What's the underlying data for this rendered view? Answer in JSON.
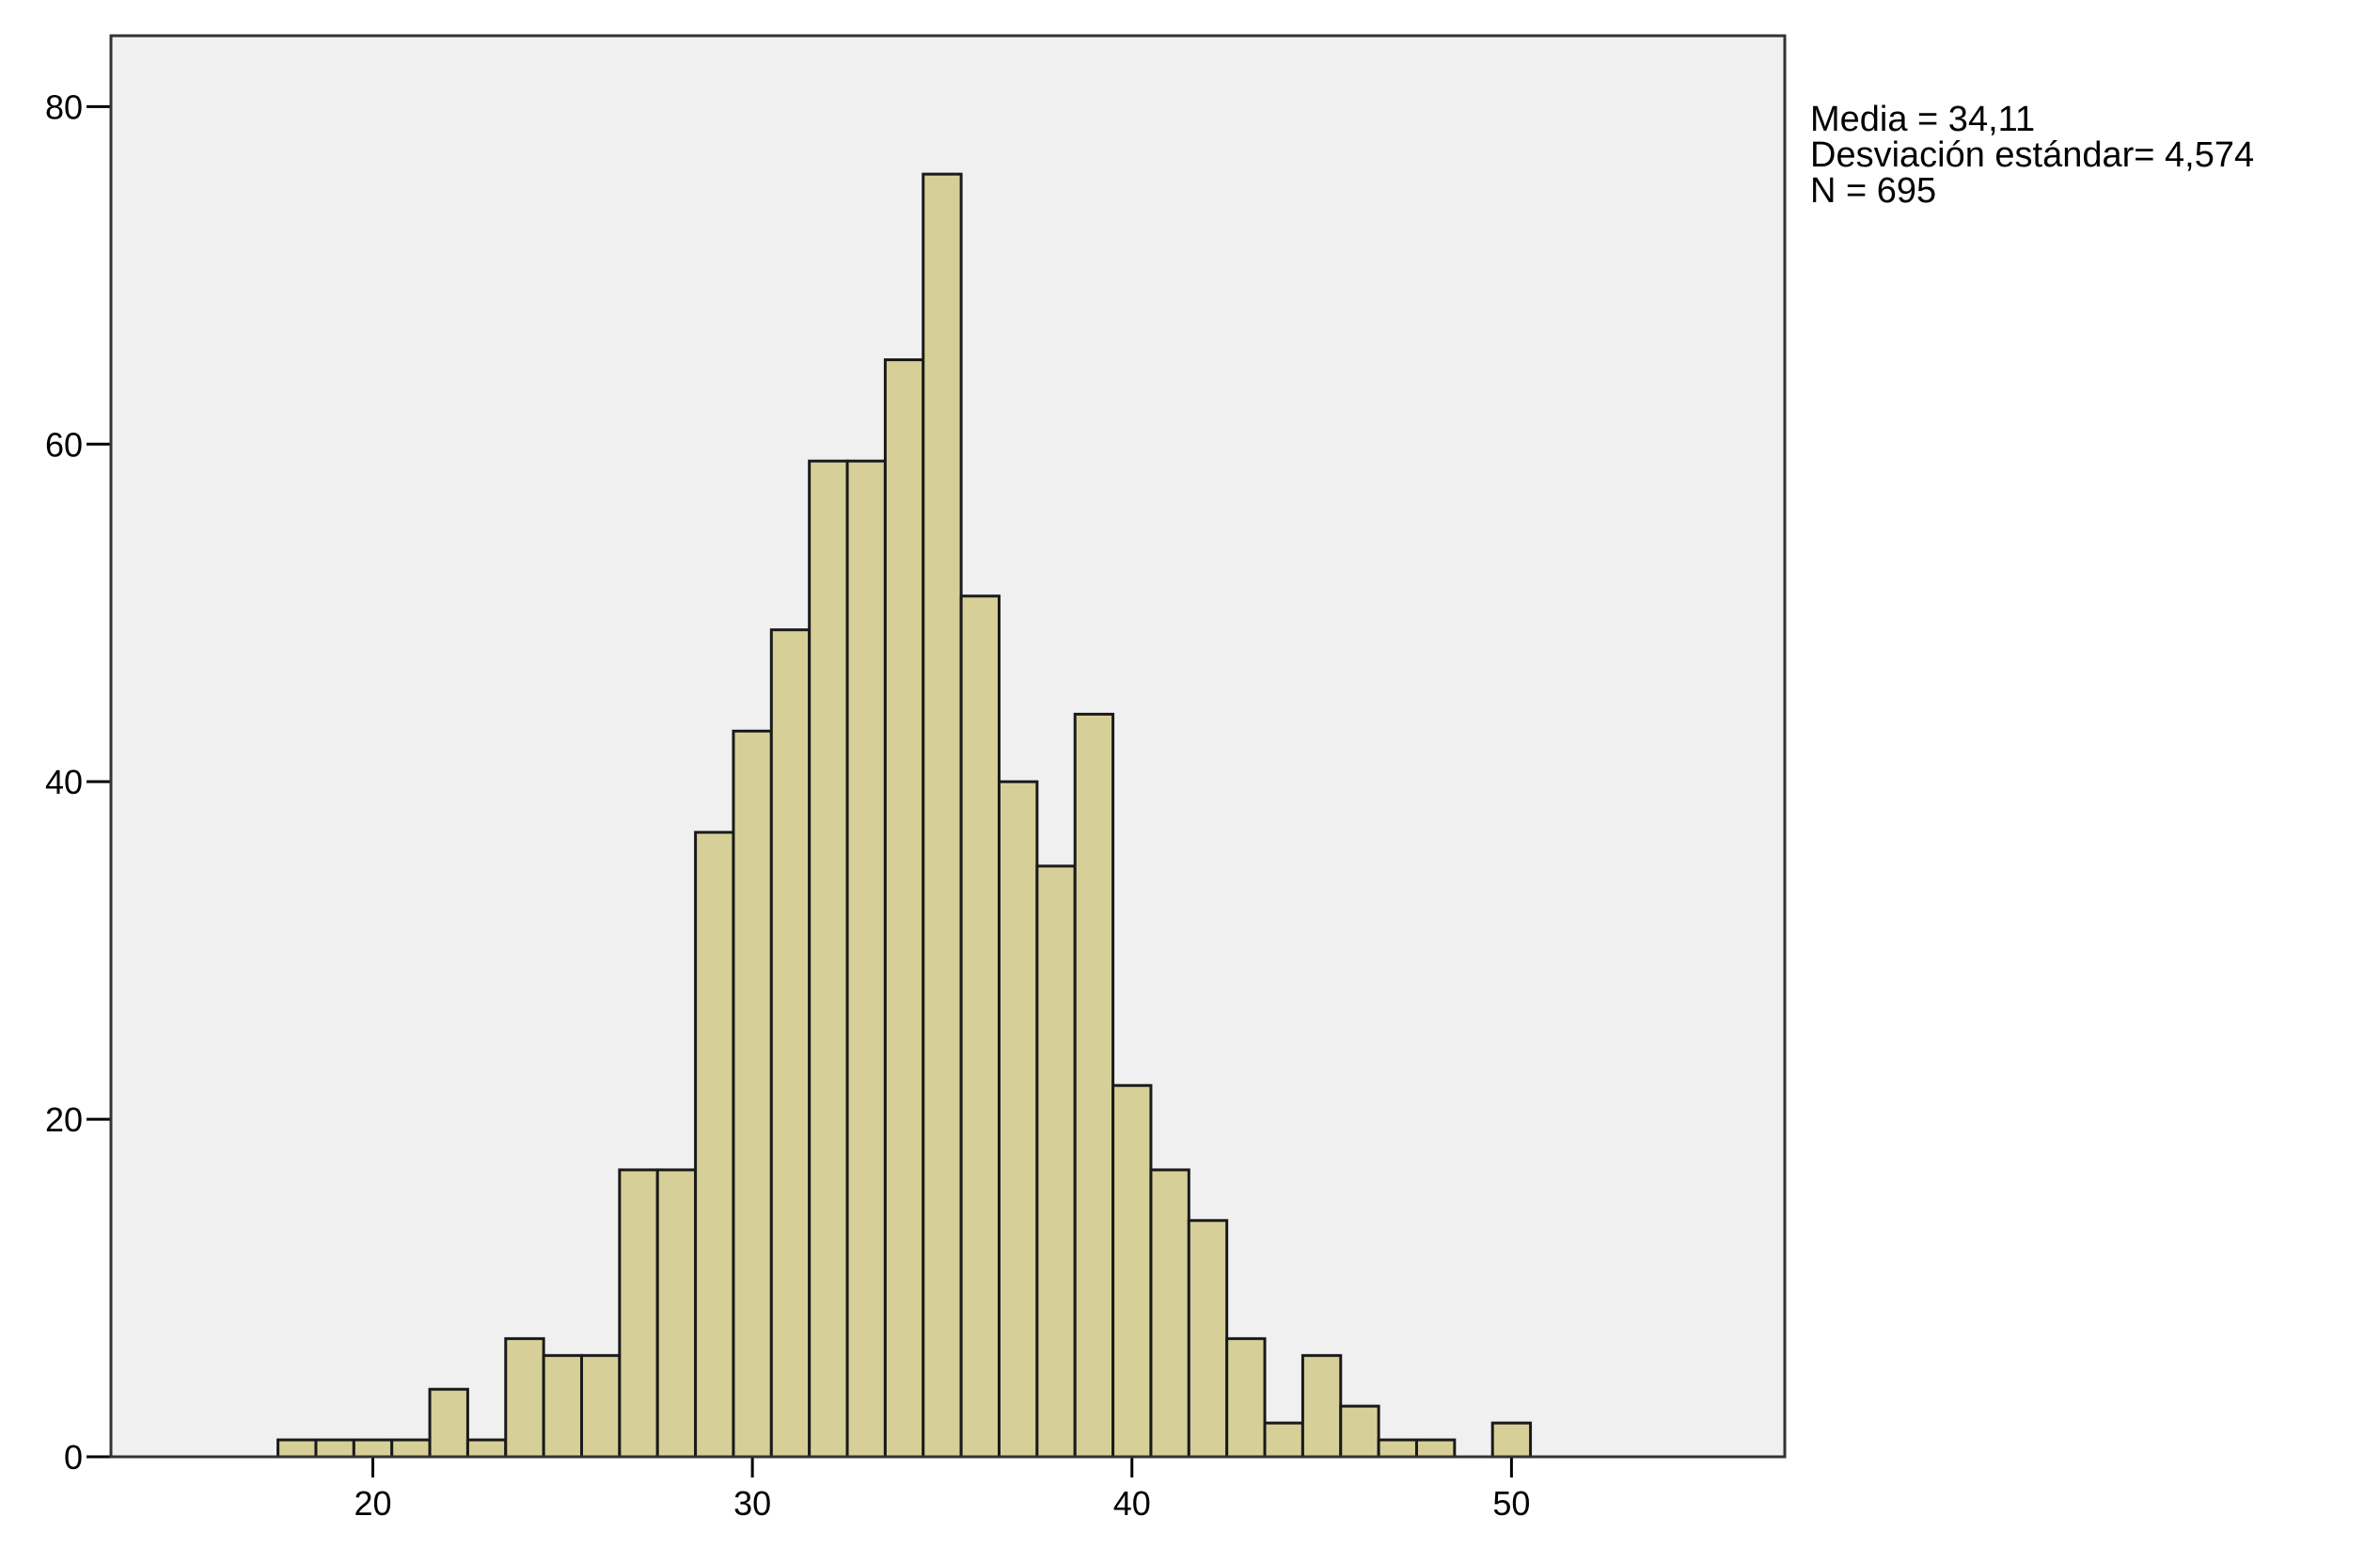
{
  "chart_data": {
    "type": "bar",
    "subtype": "histogram",
    "bin_width": 1,
    "bins": [
      {
        "x": 18,
        "count": 1
      },
      {
        "x": 19,
        "count": 1
      },
      {
        "x": 20,
        "count": 1
      },
      {
        "x": 21,
        "count": 1
      },
      {
        "x": 22,
        "count": 4
      },
      {
        "x": 23,
        "count": 1
      },
      {
        "x": 24,
        "count": 7
      },
      {
        "x": 25,
        "count": 6
      },
      {
        "x": 26,
        "count": 6
      },
      {
        "x": 27,
        "count": 17
      },
      {
        "x": 28,
        "count": 17
      },
      {
        "x": 29,
        "count": 37
      },
      {
        "x": 30,
        "count": 43
      },
      {
        "x": 31,
        "count": 49
      },
      {
        "x": 32,
        "count": 59
      },
      {
        "x": 33,
        "count": 59
      },
      {
        "x": 34,
        "count": 65
      },
      {
        "x": 35,
        "count": 76
      },
      {
        "x": 36,
        "count": 51
      },
      {
        "x": 37,
        "count": 40
      },
      {
        "x": 38,
        "count": 35
      },
      {
        "x": 39,
        "count": 44
      },
      {
        "x": 40,
        "count": 22
      },
      {
        "x": 41,
        "count": 17
      },
      {
        "x": 42,
        "count": 14
      },
      {
        "x": 43,
        "count": 7
      },
      {
        "x": 44,
        "count": 2
      },
      {
        "x": 45,
        "count": 6
      },
      {
        "x": 46,
        "count": 3
      },
      {
        "x": 47,
        "count": 1
      },
      {
        "x": 48,
        "count": 1
      },
      {
        "x": 50,
        "count": 2
      }
    ],
    "title": "",
    "xlabel": "",
    "ylabel": "",
    "xlim": [
      13.1,
      57.2
    ],
    "ylim": [
      0,
      84.2
    ],
    "x_ticks": [
      20,
      30,
      40,
      50
    ],
    "y_ticks": [
      0,
      20,
      40,
      60,
      80
    ],
    "grid": false,
    "legend": "none",
    "colors": {
      "bar_fill": "#d6cf98",
      "bar_stroke": "#1a1a1a",
      "plot_background": "#f0f0f0",
      "page_background": "#ffffff"
    }
  },
  "stats": {
    "mean_label": "Media = 34,11",
    "sd_label": "Desviación estándar= 4,574",
    "n_label": "N = 695"
  }
}
